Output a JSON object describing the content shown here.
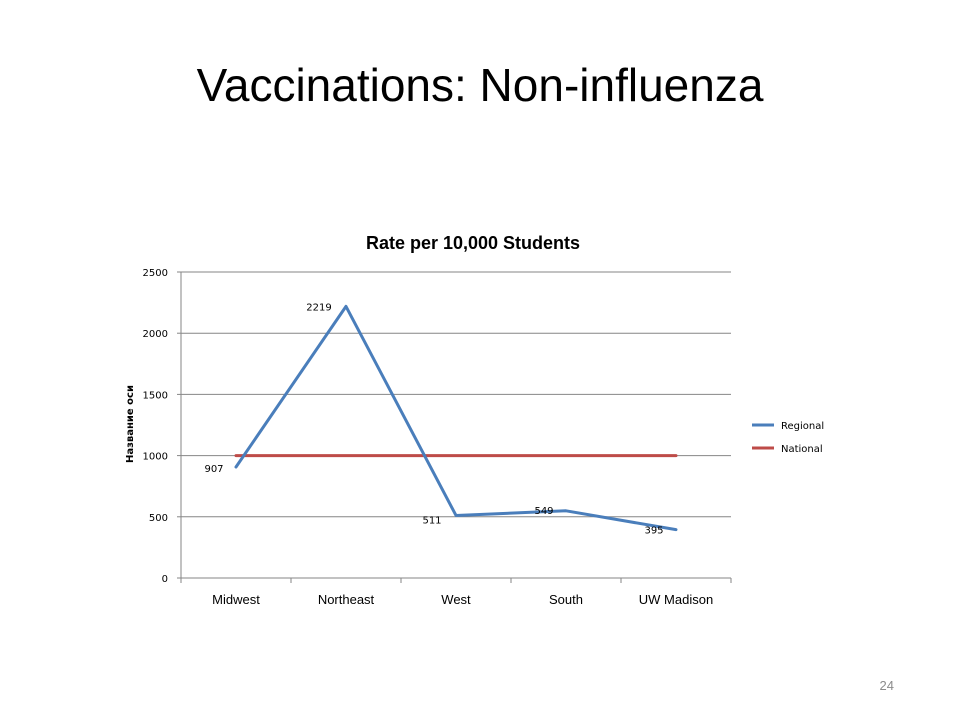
{
  "slide": {
    "title": "Vaccinations: Non-influenza",
    "page_number": "24"
  },
  "chart_data": {
    "type": "line",
    "title": "Rate per 10,000 Students",
    "xlabel": "",
    "ylabel": "Название оси",
    "categories": [
      "Midwest",
      "Northeast",
      "West",
      "South",
      "UW Madison"
    ],
    "ylim": [
      0,
      2500
    ],
    "yticks": [
      0,
      500,
      1000,
      1500,
      2000,
      2500
    ],
    "grid": true,
    "legend_position": "right",
    "series": [
      {
        "name": "Regional",
        "values": [
          907,
          2219,
          511,
          549,
          395
        ],
        "data_labels": [
          "907",
          "2219",
          "511",
          "549",
          "395"
        ],
        "color": "#4a7ebb"
      },
      {
        "name": "National",
        "values": [
          1000,
          1000,
          1000,
          1000,
          1000
        ],
        "color": "#be4b48"
      }
    ]
  }
}
